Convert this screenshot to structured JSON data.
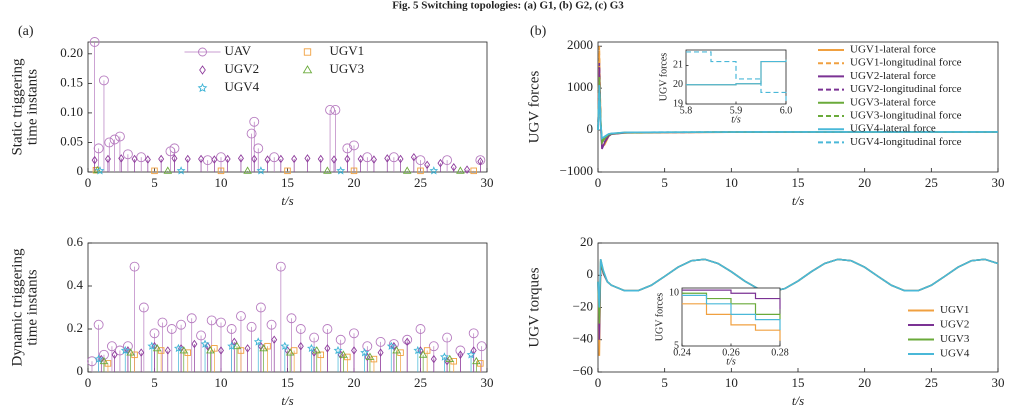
{
  "caption": "Fig. 5 Switching topologies: (a) G1, (b) G2, (c) G3",
  "chart_data": [
    {
      "type": "stem",
      "panel": "(a)",
      "ylabel": [
        "Static triggering",
        "time instants"
      ],
      "xlabel": "t/s",
      "xlim": [
        0,
        30
      ],
      "xticks": [
        0,
        5,
        10,
        15,
        20,
        25,
        30
      ],
      "ylim": [
        0,
        0.22
      ],
      "yticks": [
        0,
        0.05,
        {
          "value": 0.1,
          "label": "0.10"
        },
        0.15,
        {
          "value": 0.2,
          "label": "0.20"
        }
      ],
      "legend": "upper center",
      "series": [
        {
          "name": "UAV",
          "color": "#b77cc0",
          "marker": "circle",
          "x": [
            0.5,
            0.8,
            1.2,
            1.6,
            2.0,
            2.4,
            3.0,
            4.0,
            6.2,
            6.5,
            9.0,
            10.0,
            12.3,
            12.5,
            12.8,
            14.0,
            18.2,
            18.6,
            19.5,
            20.0,
            21.0,
            23.0,
            25.0,
            27.0,
            29.5
          ],
          "values": [
            0.22,
            0.04,
            0.155,
            0.05,
            0.055,
            0.06,
            0.03,
            0.025,
            0.035,
            0.04,
            0.02,
            0.025,
            0.065,
            0.085,
            0.04,
            0.025,
            0.105,
            0.105,
            0.04,
            0.045,
            0.025,
            0.025,
            0.02,
            0.02,
            0.02
          ]
        },
        {
          "name": "UGV1",
          "color": "#f0a040",
          "marker": "square",
          "x": [
            0.6,
            5,
            10,
            15,
            20,
            25,
            29
          ],
          "values": [
            0.003,
            0.002,
            0.002,
            0.002,
            0.002,
            0.002,
            0.002
          ]
        },
        {
          "name": "UGV2",
          "color": "#8e3c9c",
          "marker": "diamond",
          "x": [
            0.5,
            1.5,
            2.5,
            3.5,
            4.5,
            5.5,
            6.5,
            7.5,
            8.5,
            9.5,
            10.5,
            11.5,
            12.5,
            13.5,
            14.5,
            15.5,
            16.5,
            17.5,
            18.5,
            19.5,
            20.5,
            21.5,
            22.5,
            23.5,
            24.5,
            25.5,
            26.5,
            27.5,
            28.5,
            29.5
          ],
          "values": [
            0.02,
            0.022,
            0.023,
            0.022,
            0.021,
            0.022,
            0.023,
            0.022,
            0.022,
            0.021,
            0.022,
            0.023,
            0.022,
            0.021,
            0.022,
            0.022,
            0.023,
            0.022,
            0.021,
            0.022,
            0.022,
            0.021,
            0.023,
            0.022,
            0.025,
            0.012,
            0.015,
            0.008,
            0.004,
            0.018
          ]
        },
        {
          "name": "UGV3",
          "color": "#6aaa3a",
          "marker": "triangle",
          "x": [
            0.7,
            6,
            12,
            18,
            24,
            28
          ],
          "values": [
            0.003,
            0.002,
            0.002,
            0.002,
            0.002,
            0.002
          ]
        },
        {
          "name": "UGV4",
          "color": "#3fb4d6",
          "marker": "star",
          "x": [
            0.9,
            7,
            13,
            19,
            26
          ],
          "values": [
            0.002,
            0.002,
            0.002,
            0.002,
            0.002
          ]
        }
      ]
    },
    {
      "type": "line",
      "panel": "(b)",
      "ylabel": [
        "UGV forces"
      ],
      "xlabel": "t/s",
      "xlim": [
        0,
        30
      ],
      "xticks": [
        0,
        5,
        10,
        15,
        20,
        25,
        30
      ],
      "ylim": [
        -1000,
        2100
      ],
      "yticks": [
        {
          "value": -1000,
          "label": "−1000"
        },
        0,
        1000,
        2000
      ],
      "legend": "upper right",
      "x": [
        0,
        0.1,
        0.2,
        0.3,
        0.5,
        0.8,
        1,
        2,
        5,
        10,
        15,
        20,
        25,
        30
      ],
      "series": [
        {
          "name": "UGV1-lateral force",
          "color": "#f0a040",
          "dash": false,
          "values": [
            0,
            1800,
            300,
            -400,
            -350,
            -150,
            -100,
            -70,
            -60,
            -50,
            -45,
            -45,
            -45,
            -45
          ]
        },
        {
          "name": "UGV1-longitudinal force",
          "color": "#f0a040",
          "dash": true,
          "values": [
            0,
            2000,
            200,
            -300,
            -250,
            -120,
            -90,
            -60,
            -55,
            -50,
            -45,
            -45,
            -45,
            -45
          ]
        },
        {
          "name": "UGV2-lateral force",
          "color": "#7b3294",
          "dash": false,
          "values": [
            0,
            1500,
            100,
            -450,
            -300,
            -140,
            -100,
            -65,
            -55,
            -50,
            -45,
            -45,
            -45,
            -45
          ]
        },
        {
          "name": "UGV2-longitudinal force",
          "color": "#7b3294",
          "dash": true,
          "values": [
            0,
            1600,
            150,
            -350,
            -280,
            -130,
            -95,
            -60,
            -55,
            -48,
            -45,
            -45,
            -45,
            -45
          ]
        },
        {
          "name": "UGV3-lateral force",
          "color": "#6aaa3a",
          "dash": false,
          "values": [
            0,
            1200,
            250,
            -300,
            -200,
            -110,
            -90,
            -60,
            -55,
            -48,
            -45,
            -45,
            -45,
            -45
          ]
        },
        {
          "name": "UGV3-longitudinal force",
          "color": "#6aaa3a",
          "dash": true,
          "values": [
            0,
            1300,
            200,
            -250,
            -180,
            -100,
            -85,
            -58,
            -52,
            -47,
            -45,
            -45,
            -45,
            -45
          ]
        },
        {
          "name": "UGV4-lateral force",
          "color": "#4ab8d8",
          "dash": false,
          "values": [
            0,
            1000,
            150,
            -200,
            -150,
            -90,
            -80,
            -55,
            -50,
            -46,
            -45,
            -45,
            -45,
            -45
          ]
        },
        {
          "name": "UGV4-longitudinal force",
          "color": "#4ab8d8",
          "dash": true,
          "values": [
            0,
            1100,
            120,
            -220,
            -160,
            -95,
            -82,
            -56,
            -50,
            -46,
            -45,
            -45,
            -45,
            -45
          ]
        }
      ],
      "inset": {
        "ylabel": "UGV forces",
        "xlabel": "t/s",
        "xlim": [
          5.8,
          6.0
        ],
        "xticks": [
          5.8,
          5.9,
          {
            "value": 6.0,
            "label": "6.0"
          }
        ],
        "ylim": [
          19,
          21.8
        ],
        "yticks": [
          19,
          20,
          21
        ],
        "step": true,
        "x": [
          5.8,
          5.85,
          5.9,
          5.95,
          6.0
        ],
        "series": [
          {
            "color": "#f0a040",
            "dash": false,
            "values": [
              20,
              20,
              20.05,
              21.2,
              21.3
            ]
          },
          {
            "color": "#4ab8d8",
            "dash": false,
            "values": [
              20,
              20,
              20.05,
              21.2,
              21.3
            ]
          },
          {
            "color": "#4ab8d8",
            "dash": true,
            "values": [
              21.7,
              21.2,
              20.3,
              19.6,
              19.1
            ]
          }
        ]
      }
    },
    {
      "type": "stem",
      "ylabel": [
        "Dynamic triggering",
        "time instants"
      ],
      "xlabel": "t/s",
      "xlim": [
        0,
        30
      ],
      "xticks": [
        0,
        5,
        10,
        15,
        20,
        25,
        30
      ],
      "ylim": [
        0,
        0.6
      ],
      "yticks": [
        0,
        0.2,
        0.4,
        0.6
      ],
      "series": [
        {
          "color": "#b77cc0",
          "marker": "circle",
          "x": [
            0.3,
            0.8,
            1.2,
            1.8,
            2.4,
            3.0,
            3.5,
            4.2,
            5.0,
            5.6,
            6.3,
            7.0,
            7.8,
            8.5,
            9.3,
            10.0,
            10.8,
            11.5,
            12.3,
            13.0,
            13.8,
            14.5,
            15.3,
            16.0,
            17.0,
            18.0,
            19.0,
            20.0,
            21.0,
            22.0,
            23.0,
            24.0,
            25.0,
            26.0,
            27.0,
            28.0,
            29.0,
            29.6
          ],
          "values": [
            0.05,
            0.22,
            0.08,
            0.12,
            0.1,
            0.12,
            0.49,
            0.3,
            0.18,
            0.23,
            0.2,
            0.22,
            0.25,
            0.17,
            0.24,
            0.23,
            0.2,
            0.26,
            0.21,
            0.3,
            0.22,
            0.49,
            0.25,
            0.2,
            0.16,
            0.2,
            0.15,
            0.18,
            0.12,
            0.14,
            0.13,
            0.15,
            0.2,
            0.12,
            0.16,
            0.1,
            0.18,
            0.12
          ]
        },
        {
          "color": "#f0a040",
          "marker": "square",
          "x": [
            1.5,
            3.5,
            5.5,
            7.5,
            9.5,
            11.5,
            13.5,
            15.5,
            17.5,
            19.5,
            21.5,
            23.5,
            25.5,
            27.5,
            29.5
          ],
          "values": [
            0.04,
            0.08,
            0.1,
            0.09,
            0.11,
            0.1,
            0.12,
            0.1,
            0.08,
            0.07,
            0.06,
            0.09,
            0.1,
            0.05,
            0.04
          ]
        },
        {
          "color": "#8e3c9c",
          "marker": "diamond",
          "x": [
            1,
            2,
            3,
            4,
            5,
            6,
            7,
            8,
            9,
            10,
            11,
            12,
            13,
            14,
            15,
            16,
            17,
            18,
            19,
            20,
            21,
            22,
            23,
            24,
            25,
            26,
            27,
            28,
            29
          ],
          "values": [
            0.06,
            0.08,
            0.1,
            0.09,
            0.12,
            0.1,
            0.11,
            0.13,
            0.12,
            0.1,
            0.14,
            0.11,
            0.12,
            0.15,
            0.1,
            0.12,
            0.09,
            0.11,
            0.08,
            0.1,
            0.07,
            0.09,
            0.12,
            0.14,
            0.1,
            0.06,
            0.05,
            0.08,
            0.1
          ]
        },
        {
          "color": "#6aaa3a",
          "marker": "triangle",
          "x": [
            1.2,
            3.2,
            5.2,
            7.2,
            9.2,
            11.2,
            13.2,
            15.2,
            17.2,
            19.2,
            21.2,
            23.2,
            25.2,
            27.2,
            29.2
          ],
          "values": [
            0.05,
            0.09,
            0.11,
            0.1,
            0.1,
            0.12,
            0.11,
            0.09,
            0.1,
            0.08,
            0.07,
            0.1,
            0.08,
            0.06,
            0.05
          ]
        },
        {
          "color": "#3fb4d6",
          "marker": "star",
          "x": [
            0.8,
            2.8,
            4.8,
            6.8,
            8.8,
            10.8,
            12.8,
            14.8,
            16.8,
            18.8,
            20.8,
            22.8,
            24.8,
            26.8,
            28.8
          ],
          "values": [
            0.06,
            0.1,
            0.12,
            0.11,
            0.13,
            0.12,
            0.14,
            0.12,
            0.11,
            0.1,
            0.09,
            0.12,
            0.1,
            0.07,
            0.08
          ]
        }
      ]
    },
    {
      "type": "line",
      "ylabel": [
        "UGV torques"
      ],
      "xlabel": "t/s",
      "xlim": [
        0,
        30
      ],
      "xticks": [
        0,
        5,
        10,
        15,
        20,
        25,
        30
      ],
      "ylim": [
        -60,
        20
      ],
      "yticks": [
        {
          "value": -60,
          "label": "−60"
        },
        {
          "value": -40,
          "label": "−40"
        },
        {
          "value": -20,
          "label": "−20"
        },
        0,
        20
      ],
      "legend": "lower right",
      "x": [
        0,
        0.1,
        0.2,
        0.4,
        0.7,
        1,
        2,
        3,
        4,
        5,
        6,
        7,
        8,
        9,
        10,
        11,
        12,
        13,
        14,
        15,
        16,
        17,
        18,
        19,
        20,
        21,
        22,
        23,
        24,
        25,
        26,
        27,
        28,
        29,
        30
      ],
      "series": [
        {
          "name": "UGV1",
          "color": "#f0a040",
          "dash": false,
          "values": [
            -4,
            -50,
            10,
            2,
            -4,
            -6.2,
            -9.6,
            -9.6,
            -6.2,
            -0.7,
            5,
            9,
            9.9,
            7.3,
            2.2,
            -3.6,
            -8.3,
            -10,
            -8.3,
            -3.6,
            2.2,
            7.3,
            9.9,
            9,
            5,
            -0.7,
            -6.2,
            -9.6,
            -9.6,
            -6.2,
            -0.7,
            5,
            9,
            9.9,
            7.3
          ]
        },
        {
          "name": "UGV2",
          "color": "#7b3294",
          "dash": false,
          "values": [
            -4,
            -40,
            8,
            1,
            -4,
            -6.2,
            -9.6,
            -9.6,
            -6.2,
            -0.7,
            5,
            9,
            9.9,
            7.3,
            2.2,
            -3.6,
            -8.3,
            -10,
            -8.3,
            -3.6,
            2.2,
            7.3,
            9.9,
            9,
            5,
            -0.7,
            -6.2,
            -9.6,
            -9.6,
            -6.2,
            -0.7,
            5,
            9,
            9.9,
            7.3
          ]
        },
        {
          "name": "UGV3",
          "color": "#6aaa3a",
          "dash": false,
          "values": [
            -4,
            -30,
            9,
            2,
            -4,
            -6.2,
            -9.6,
            -9.6,
            -6.2,
            -0.7,
            5,
            9,
            9.9,
            7.3,
            2.2,
            -3.6,
            -8.3,
            -10,
            -8.3,
            -3.6,
            2.2,
            7.3,
            9.9,
            9,
            5,
            -0.7,
            -6.2,
            -9.6,
            -9.6,
            -6.2,
            -0.7,
            5,
            9,
            9.9,
            7.3
          ]
        },
        {
          "name": "UGV4",
          "color": "#4ab8d8",
          "dash": false,
          "values": [
            -4,
            -20,
            10,
            3,
            -4,
            -6.2,
            -9.6,
            -9.6,
            -6.2,
            -0.7,
            5,
            9,
            9.9,
            7.3,
            2.2,
            -3.6,
            -8.3,
            -10,
            -8.3,
            -3.6,
            2.2,
            7.3,
            9.9,
            9,
            5,
            -0.7,
            -6.2,
            -9.6,
            -9.6,
            -6.2,
            -0.7,
            5,
            9,
            9.9,
            7.3
          ]
        }
      ],
      "inset": {
        "ylabel": "UGV forces",
        "xlabel": "t/s",
        "xlim": [
          0.24,
          0.28
        ],
        "xticks": [
          0.24,
          0.26,
          0.28
        ],
        "ylim": [
          5,
          10.5
        ],
        "yticks": [
          5,
          10
        ],
        "step": true,
        "x": [
          0.24,
          0.25,
          0.26,
          0.27,
          0.28
        ],
        "series": [
          {
            "color": "#f0a040",
            "dash": false,
            "values": [
              9,
              8,
              7,
              6.5,
              5.5
            ]
          },
          {
            "color": "#7b3294",
            "dash": false,
            "values": [
              10.3,
              10.3,
              10,
              9.5,
              8.5
            ]
          },
          {
            "color": "#6aaa3a",
            "dash": false,
            "values": [
              10,
              9.5,
              9,
              8,
              7.5
            ]
          },
          {
            "color": "#4ab8d8",
            "dash": false,
            "values": [
              9.8,
              9,
              8,
              7.5,
              6.5
            ]
          }
        ]
      }
    }
  ]
}
